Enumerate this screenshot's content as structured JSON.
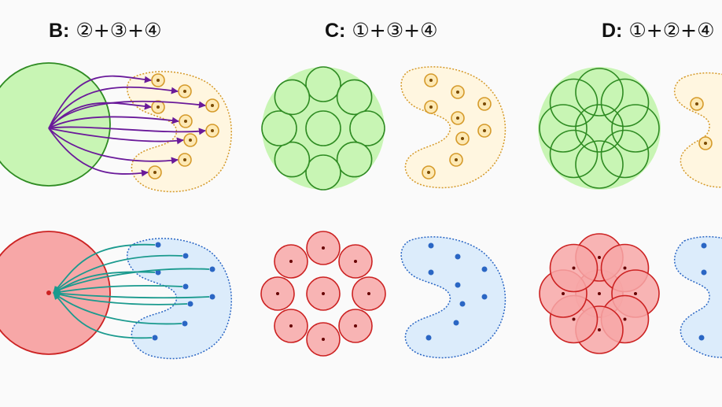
{
  "panels": [
    {
      "letter": "B:",
      "formula": "②+③+④"
    },
    {
      "letter": "C:",
      "formula": "①+③+④"
    },
    {
      "letter": "D:",
      "formula": "①+②+④"
    }
  ],
  "colors": {
    "green_fill": "#c8f5b4",
    "green_stroke": "#2e8b22",
    "red_fill": "#f7a7a7",
    "red_stroke": "#cc2222",
    "orange_fill": "#fff6e0",
    "orange_stroke": "#d59a2a",
    "blue_fill": "#dcecfb",
    "blue_stroke": "#2a66c4",
    "purple_arrow": "#6a1a9a",
    "teal_arrow": "#1a9a8e"
  }
}
